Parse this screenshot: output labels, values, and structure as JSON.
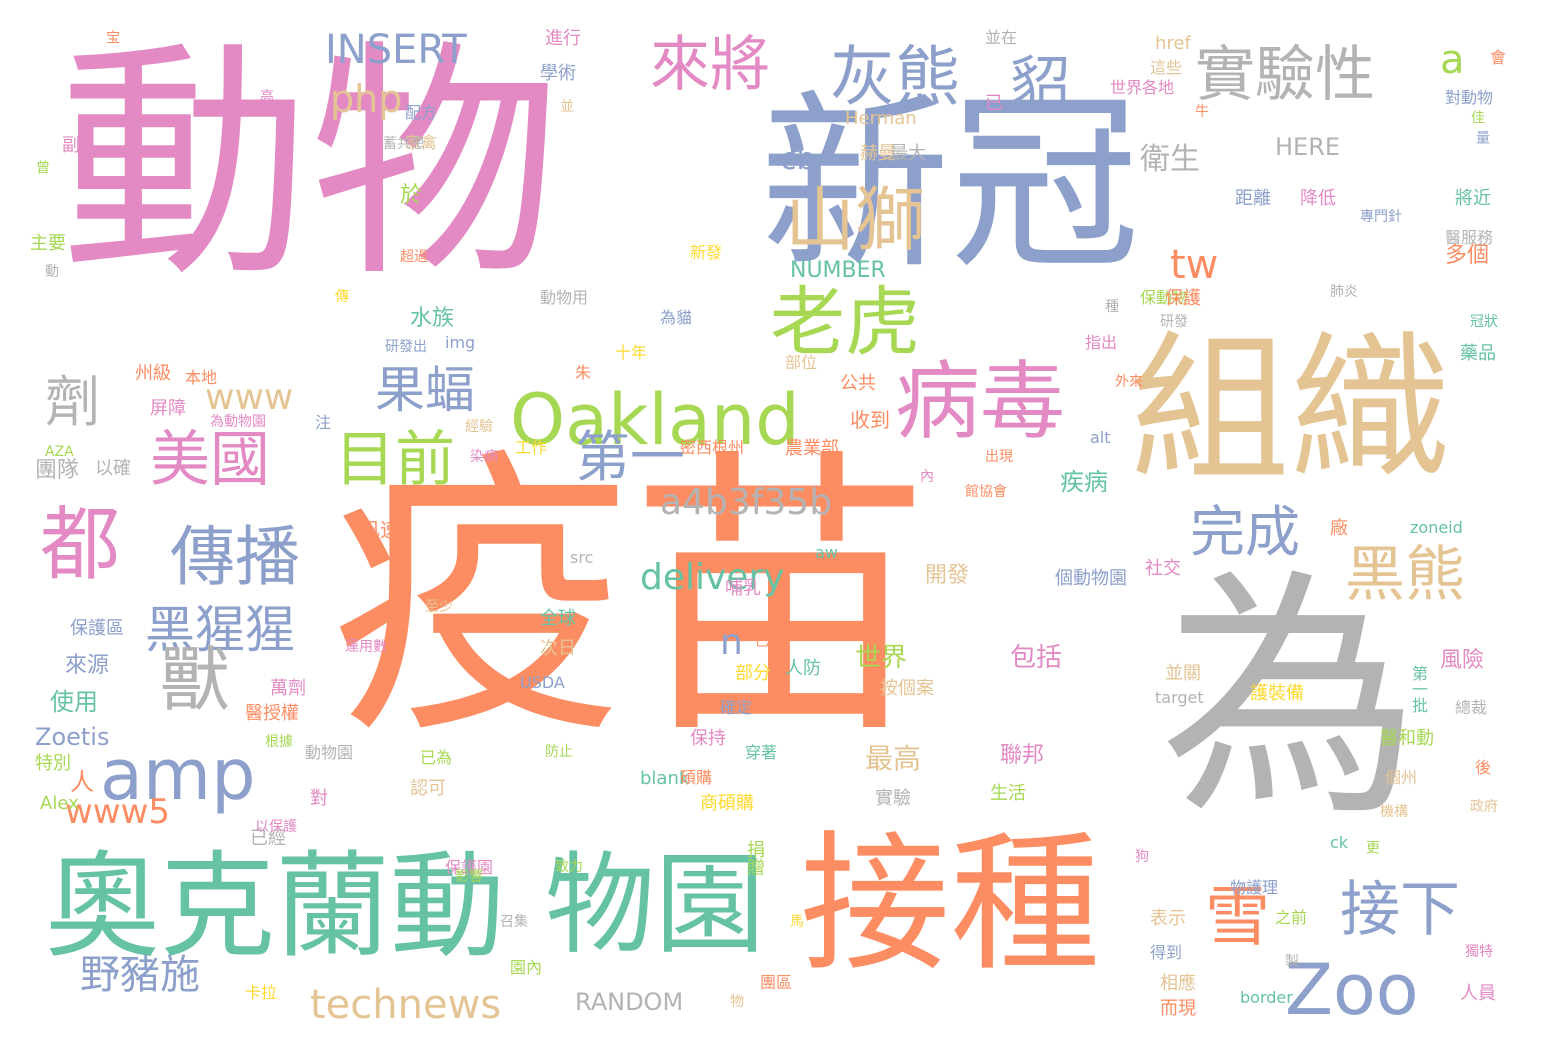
{
  "words": [
    "動物",
    "新冠",
    "疫苗",
    "為",
    "組織",
    "接種",
    "奧克蘭動",
    "物園",
    "病毒",
    "Oakland",
    "amp",
    "山獅",
    "老虎",
    "灰熊",
    "貂",
    "實驗性",
    "來將",
    "美國",
    "目前",
    "傳播",
    "黑猩猩",
    "獸",
    "果蝠",
    "第一",
    "黑熊",
    "都",
    "雪",
    "Zoo",
    "接下",
    "完成",
    "technews",
    "a4b3f35b",
    "delivery",
    "www",
    "www5",
    "野豬施",
    "劑",
    "INSERT",
    "php",
    "tw",
    "a",
    "cb",
    "衛生",
    "於",
    "水族",
    "來源",
    "使用",
    "Zoetis",
    "n",
    "世界",
    "包括",
    "最高",
    "聯邦",
    "生活",
    "RANDOM",
    "NUMBER",
    "HERE",
    "Herman",
    "赫曼",
    "最大",
    "href",
    "img",
    "alt",
    "src",
    "target",
    "blank",
    "USDA",
    "border",
    "zoneid",
    "ck",
    "aw",
    "AZA",
    "Alex",
    "疾病",
    "風險",
    "多個",
    "人",
    "已經",
    "以確",
    "團隊",
    "屏障",
    "州級",
    "主要",
    "動",
    "副",
    "曾",
    "高",
    "宝",
    "配方",
    "家禽",
    "進行",
    "學術",
    "並",
    "並在",
    "已",
    "這些",
    "世界各地",
    "牛",
    "會",
    "對動物",
    "佳",
    "量",
    "降低",
    "距離",
    "將近",
    "專門針",
    "醫服務",
    "肺炎",
    "研發",
    "冠狀",
    "藥品",
    "外來",
    "部位",
    "公共",
    "收到",
    "密西根州",
    "農業部",
    "工作",
    "染病",
    "經驗",
    "注",
    "為動物園",
    "本地",
    "研發出",
    "十年",
    "朱",
    "為貓",
    "動物用",
    "保動物",
    "指出",
    "種",
    "保護",
    "開發",
    "社交",
    "迅速",
    "個動物園",
    "人防",
    "哺乳",
    "至少",
    "全球",
    "次日",
    "萬劑",
    "醫授權",
    "根據",
    "特別",
    "運用數",
    "保護區",
    "對",
    "保護園",
    "致力",
    "影響",
    "物護理",
    "表示",
    "之前",
    "得到",
    "相應",
    "而現",
    "人員",
    "製",
    "獨特",
    "醫和動",
    "個州",
    "機構",
    "後",
    "總裁",
    "政府",
    "並關",
    "第一批",
    "護裝備",
    "穿著",
    "確定",
    "碩購",
    "商碩購",
    "按個案",
    "實驗",
    "捐贈",
    "保持",
    "部分",
    "防止",
    "認可",
    "已為",
    "動物園",
    "園內",
    "團區",
    "卡拉",
    "召集",
    "馬",
    "傳",
    "狗",
    "超過",
    "新發",
    "內",
    "出現",
    "館協會",
    "廠",
    "以保護",
    "已經",
    "更",
    "物",
    "蓄共患"
  ]
}
